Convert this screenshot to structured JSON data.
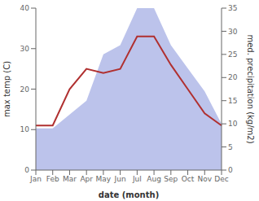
{
  "chart_data": {
    "type": "line",
    "xlabel": "date (month)",
    "ylabel": "max temp (C)",
    "y2label": "med. precipitation (kg/m2)",
    "categories": [
      "Jan",
      "Feb",
      "Mar",
      "Apr",
      "May",
      "Jun",
      "Jul",
      "Aug",
      "Sep",
      "Oct",
      "Nov",
      "Dec"
    ],
    "series": [
      {
        "type": "area",
        "color": "#b0b8e8",
        "axis": "y2",
        "values": [
          9,
          9,
          12,
          15,
          25,
          27,
          35,
          35,
          27,
          22,
          17,
          10
        ]
      },
      {
        "type": "line",
        "color": "#b03030",
        "values": [
          11,
          11,
          20,
          25,
          24,
          25,
          33,
          33,
          26,
          20,
          14,
          11
        ]
      }
    ],
    "ylim": [
      0,
      40
    ],
    "yticks": [
      0,
      10,
      20,
      30,
      40
    ],
    "y2lim": [
      0,
      35
    ],
    "y2ticks": [
      0,
      5,
      10,
      15,
      20,
      25,
      30,
      35
    ],
    "grid": false
  }
}
